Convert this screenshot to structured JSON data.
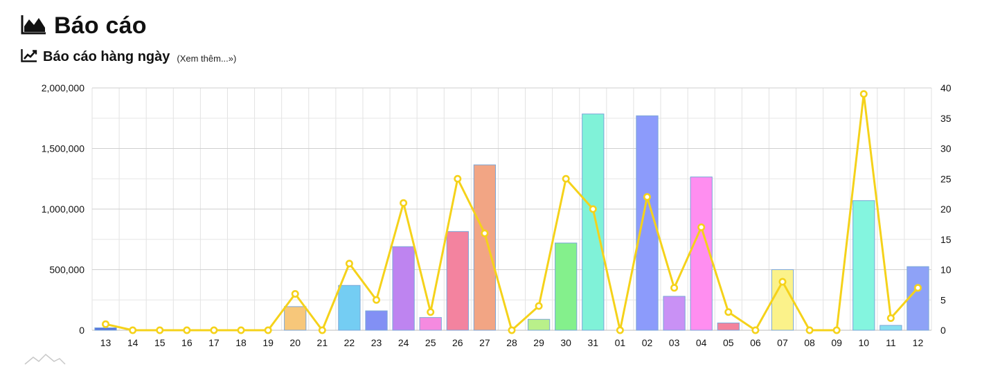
{
  "header": {
    "title": "Báo cáo",
    "title_icon": "area-chart-icon"
  },
  "section": {
    "title": "Báo cáo hàng ngày",
    "title_icon": "line-chart-icon",
    "more_link": "(Xem thêm...»)"
  },
  "chart_data": {
    "type": "bar",
    "categories": [
      "13",
      "14",
      "15",
      "16",
      "17",
      "18",
      "19",
      "20",
      "21",
      "22",
      "23",
      "24",
      "25",
      "26",
      "27",
      "28",
      "29",
      "30",
      "31",
      "01",
      "02",
      "03",
      "04",
      "05",
      "06",
      "07",
      "08",
      "09",
      "10",
      "11",
      "12"
    ],
    "series": [
      {
        "type": "bar",
        "axis": "left",
        "values": [
          20000,
          0,
          0,
          0,
          0,
          0,
          0,
          195000,
          0,
          370000,
          160000,
          690000,
          105000,
          815000,
          1365000,
          0,
          90000,
          720000,
          1785000,
          0,
          1770000,
          280000,
          1265000,
          60000,
          0,
          500000,
          0,
          0,
          1070000,
          40000,
          525000
        ]
      },
      {
        "type": "line",
        "axis": "right",
        "color": "#f5d21a",
        "values": [
          1,
          0,
          0,
          0,
          0,
          0,
          0,
          6,
          0,
          11,
          5,
          21,
          3,
          25,
          16,
          0,
          4,
          25,
          20,
          0,
          22,
          7,
          17,
          3,
          0,
          8,
          0,
          0,
          39,
          2,
          7
        ]
      }
    ],
    "bar_colors": [
      "#5876e0",
      "#86c5f0",
      "#7df09a",
      "#f4a582",
      "#f07fa0",
      "#c28cf2",
      "#8df0d6",
      "#f7c77a",
      "#6cd98e",
      "#74cdf3",
      "#8290f4",
      "#be84f0",
      "#f58ae0",
      "#f3839f",
      "#f2a584",
      "#c6f08a",
      "#b9f08a",
      "#84f08c",
      "#80f2d8",
      "#dddddd",
      "#8c9bfb",
      "#c991f5",
      "#ff8ef0",
      "#f3839c",
      "#dddddd",
      "#fbf28a",
      "#dddddd",
      "#dddddd",
      "#84f5df",
      "#86dff0",
      "#8ea2f7"
    ],
    "y_left": {
      "min": 0,
      "max": 2000000,
      "ticks": [
        "0",
        "500,000",
        "1,000,000",
        "1,500,000",
        "2,000,000"
      ]
    },
    "y_right": {
      "min": 0,
      "max": 40,
      "ticks": [
        "0",
        "5",
        "10",
        "15",
        "20",
        "25",
        "30",
        "35",
        "40"
      ]
    },
    "grid": true,
    "legend": "none"
  }
}
